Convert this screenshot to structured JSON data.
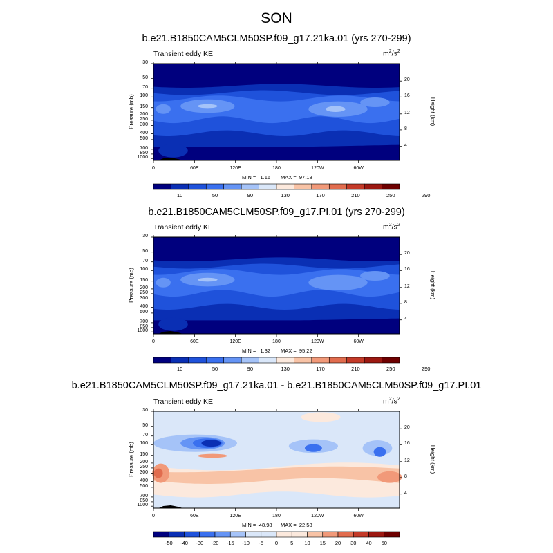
{
  "page_title": "SON",
  "units_base": "m",
  "units_sup1": "2",
  "units_mid": "/s",
  "units_sup2": "2",
  "chart_data": [
    {
      "type": "heatmap",
      "title": "b.e21.B1850CAM5CLM50SP.f09_g17.21ka.01 (yrs 270-299)",
      "subtitle": "Transient eddy KE",
      "ylabel": "Pressure (mb)",
      "y2label": "Height (km)",
      "x_ticks": [
        "0",
        "60E",
        "120E",
        "180",
        "120W",
        "60W"
      ],
      "y_ticks": [
        "30",
        "50",
        "70",
        "100",
        "150",
        "200",
        "250",
        "300",
        "400",
        "500",
        "700",
        "850",
        "1000"
      ],
      "y2_ticks": [
        "20",
        "16",
        "12",
        "8",
        "4"
      ],
      "min_text": "MIN =   1.16",
      "max_text": "MAX =  97.18",
      "min": 1.16,
      "max": 97.18,
      "colorbar_labels": [
        "10",
        "50",
        "90",
        "130",
        "170",
        "210",
        "250",
        "290"
      ]
    },
    {
      "type": "heatmap",
      "title": "b.e21.B1850CAM5CLM50SP.f09_g17.PI.01 (yrs 270-299)",
      "subtitle": "Transient eddy KE",
      "ylabel": "Pressure (mb)",
      "y2label": "Height (km)",
      "x_ticks": [
        "0",
        "60E",
        "120E",
        "180",
        "120W",
        "60W"
      ],
      "y_ticks": [
        "30",
        "50",
        "70",
        "100",
        "150",
        "200",
        "250",
        "300",
        "400",
        "500",
        "700",
        "850",
        "1000"
      ],
      "y2_ticks": [
        "20",
        "16",
        "12",
        "8",
        "4"
      ],
      "min_text": "MIN =   1.32",
      "max_text": "MAX =  95.22",
      "min": 1.32,
      "max": 95.22,
      "colorbar_labels": [
        "10",
        "50",
        "90",
        "130",
        "170",
        "210",
        "250",
        "290"
      ]
    },
    {
      "type": "heatmap",
      "title": "b.e21.B1850CAM5CLM50SP.f09_g17.21ka.01 - b.e21.B1850CAM5CLM50SP.f09_g17.PI.01",
      "subtitle": "Transient eddy KE",
      "ylabel": "Pressure (mb)",
      "y2label": "Height (km)",
      "x_ticks": [
        "0",
        "60E",
        "120E",
        "180",
        "120W",
        "60W"
      ],
      "y_ticks": [
        "30",
        "50",
        "70",
        "100",
        "150",
        "200",
        "250",
        "300",
        "400",
        "500",
        "700",
        "850",
        "1000"
      ],
      "y2_ticks": [
        "20",
        "16",
        "12",
        "8",
        "4"
      ],
      "min_text": "MIN = -48.98",
      "max_text": "MAX =  22.58",
      "min": -48.98,
      "max": 22.58,
      "colorbar_labels": [
        "-50",
        "-40",
        "-30",
        "-20",
        "-15",
        "-10",
        "-5",
        "0",
        "5",
        "10",
        "15",
        "20",
        "30",
        "40",
        "50"
      ]
    }
  ],
  "colors": {
    "sequential": [
      "#00007e",
      "#0a2fb4",
      "#1f52db",
      "#3a70ef",
      "#6594f5",
      "#a5c3f8",
      "#dae7f9",
      "#fce9dd",
      "#f8c3a6",
      "#f19979",
      "#e16c4e",
      "#c43a28",
      "#9c1811",
      "#6e0000"
    ],
    "diverging": [
      "#00007e",
      "#0a2fb4",
      "#1f52db",
      "#3a70ef",
      "#6594f5",
      "#a5c3f8",
      "#dae7f9",
      "#dae7f9",
      "#fce9dd",
      "#fce9dd",
      "#f8c3a6",
      "#f19979",
      "#e16c4e",
      "#c43a28",
      "#9c1811",
      "#6e0000"
    ],
    "land": "#000000"
  }
}
